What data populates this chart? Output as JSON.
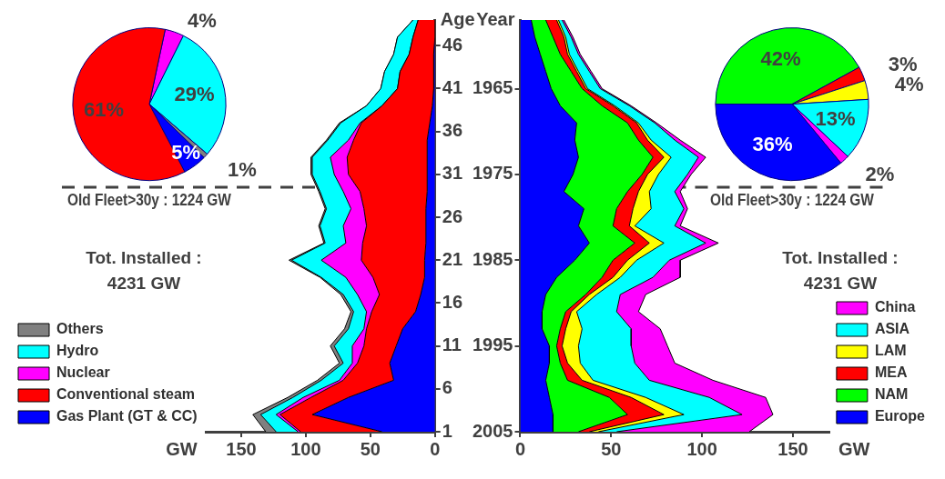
{
  "chart_data": [
    {
      "type": "pie",
      "title": "Old Fleet>30y : 1224 GW",
      "categories": [
        null,
        null,
        null,
        null,
        null
      ],
      "values": [
        4,
        29,
        1,
        5,
        61
      ],
      "colors": [
        "#ff00ff",
        "#00ffff",
        "#808080",
        "#0000ff",
        "#ff0000"
      ],
      "value_labels": [
        "4%",
        "29%",
        "1%",
        "5%",
        "61%"
      ]
    },
    {
      "type": "area",
      "orientation": "horizontal",
      "stacked": true,
      "x": [
        1,
        3,
        5,
        7,
        9,
        11,
        13,
        15,
        17,
        19,
        21,
        23,
        25,
        27,
        29,
        31,
        33,
        35,
        37,
        39,
        41,
        43,
        45,
        47,
        49
      ],
      "series": [
        {
          "name": "Gas Plant (GT & CC)",
          "color": "#0000ff",
          "values": [
            41,
            95,
            67,
            32,
            35,
            30,
            25,
            15,
            11,
            8,
            8,
            7,
            7,
            7,
            6,
            6,
            6,
            6,
            4,
            2,
            1,
            1,
            1,
            0,
            0
          ]
        },
        {
          "name": "Conventional steam",
          "color": "#ff0000",
          "values": [
            63,
            25,
            29,
            39,
            25,
            25,
            28,
            34,
            32,
            40,
            49,
            49,
            46,
            48,
            52,
            61,
            62,
            57,
            53,
            39,
            28,
            26,
            19,
            17,
            13
          ]
        },
        {
          "name": "Nuclear",
          "color": "#ff00ff",
          "values": [
            2,
            3,
            6,
            3,
            4,
            9,
            2,
            4,
            17,
            21,
            31,
            13,
            18,
            10,
            13,
            11,
            13,
            4,
            1,
            0,
            0,
            0,
            0,
            0,
            0
          ]
        },
        {
          "name": "Hydro",
          "color": "#00ffff",
          "values": [
            17,
            12,
            8,
            14,
            7,
            14,
            12,
            10,
            11,
            19,
            23,
            16,
            18,
            19,
            18,
            17,
            14,
            16,
            15,
            12,
            13,
            12,
            12,
            12,
            4
          ]
        },
        {
          "name": "Others",
          "color": "#808080",
          "values": [
            8,
            6,
            4,
            3,
            3,
            3,
            3,
            2,
            2,
            1,
            2,
            1,
            1,
            1,
            1,
            1,
            1,
            1,
            1,
            0,
            0,
            0,
            0,
            0,
            0
          ]
        }
      ],
      "xlim": [
        177,
        0
      ],
      "xticks": [
        150,
        100,
        50,
        0
      ],
      "ylim": [
        1,
        49
      ],
      "yticks": [
        1,
        6,
        11,
        16,
        21,
        26,
        31,
        36,
        41,
        46
      ],
      "xlabel": "GW",
      "ylabel": "Age",
      "legend": "bottom left",
      "ref_lines": [
        {
          "axis": "y",
          "value": 29.5,
          "color": "#404040",
          "line_style": "dashed"
        }
      ],
      "annotations": [
        "Tot. Installed : 4231 GW"
      ]
    },
    {
      "type": "area",
      "orientation": "horizontal",
      "stacked": true,
      "x": [
        1957,
        1959,
        1961,
        1963,
        1965,
        1967,
        1969,
        1971,
        1973,
        1975,
        1977,
        1979,
        1981,
        1983,
        1985,
        1987,
        1989,
        1991,
        1993,
        1995,
        1997,
        1999,
        2001,
        2003,
        2005
      ],
      "series": [
        {
          "name": "Europe",
          "color": "#0000ff",
          "values": [
            6,
            8,
            11,
            14,
            17,
            22,
            31,
            30,
            32,
            29,
            24,
            35,
            32,
            38,
            30,
            20,
            14,
            12,
            12,
            16,
            16,
            14,
            16,
            18,
            18
          ]
        },
        {
          "name": "NAM",
          "color": "#00ff00",
          "values": [
            8,
            10,
            11,
            14,
            17,
            23,
            28,
            35,
            41,
            38,
            35,
            18,
            19,
            25,
            21,
            25,
            22,
            13,
            10,
            4,
            6,
            12,
            33,
            41,
            14
          ]
        },
        {
          "name": "MEA",
          "color": "#ff0000",
          "values": [
            6,
            6,
            4,
            3,
            2,
            6,
            5,
            5,
            6,
            3,
            6,
            9,
            9,
            8,
            8,
            6,
            2,
            3,
            3,
            3,
            4,
            8,
            12,
            20,
            6
          ]
        },
        {
          "name": "LAM",
          "color": "#ffff00",
          "values": [
            1,
            1,
            1,
            1,
            1,
            1,
            1,
            2,
            4,
            6,
            6,
            10,
            3,
            8,
            5,
            4,
            4,
            3,
            9,
            9,
            7,
            6,
            8,
            11,
            5
          ]
        },
        {
          "name": "ASIA",
          "color": "#00ffff",
          "values": [
            2,
            3,
            5,
            6,
            7,
            8,
            9,
            13,
            15,
            16,
            14,
            18,
            22,
            23,
            18,
            18,
            13,
            22,
            27,
            29,
            30,
            31,
            35,
            32,
            10
          ]
        },
        {
          "name": "China",
          "color": "#ff00ff",
          "values": [
            1,
            1,
            1,
            1,
            1,
            1,
            1,
            3,
            4,
            2,
            3,
            2,
            3,
            7,
            6,
            15,
            14,
            12,
            16,
            20,
            22,
            35,
            31,
            17,
            73
          ]
        }
      ],
      "xlim": [
        0,
        170
      ],
      "xticks": [
        0,
        50,
        100,
        150
      ],
      "ylim": [
        2005,
        1957
      ],
      "yticks": [
        1965,
        1975,
        1985,
        1995,
        2005
      ],
      "xlabel": "GW",
      "ylabel": "Year",
      "legend": "bottom right",
      "ref_lines": [
        {
          "axis": "y",
          "value": 1976.5,
          "color": "#404040",
          "line_style": "dashed"
        }
      ],
      "annotations": [
        "Tot. Installed : 4231 GW"
      ]
    },
    {
      "type": "pie",
      "title": "Old Fleet>30y : 1224 GW",
      "categories": [
        null,
        null,
        null,
        null,
        null,
        null
      ],
      "values": [
        42,
        3,
        4,
        13,
        2,
        36
      ],
      "colors": [
        "#00ff00",
        "#ff0000",
        "#ffff00",
        "#00ffff",
        "#ff00ff",
        "#0000ff"
      ],
      "value_labels": [
        "42%",
        "3%",
        "4%",
        "13%",
        "2%",
        "36%"
      ]
    }
  ]
}
